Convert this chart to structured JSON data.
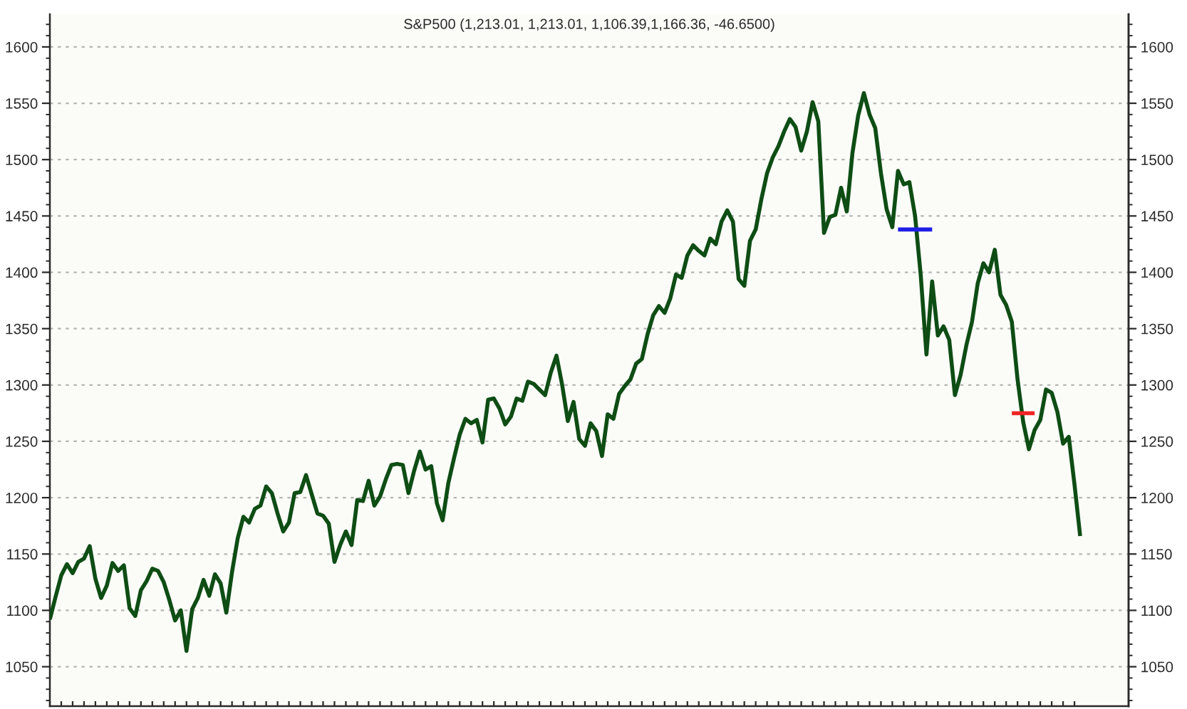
{
  "chart_data": {
    "type": "line",
    "title": "S&P500 (1,213.01, 1,213.01, 1,106.39,1,166.36, -46.6500)",
    "categories": [
      null,
      null,
      null,
      null,
      null,
      null,
      null,
      null,
      null,
      null,
      null,
      null,
      null,
      null,
      null,
      null,
      null,
      null,
      null,
      null,
      null,
      null,
      null,
      null,
      null,
      null,
      null,
      null,
      null,
      null,
      null,
      null,
      null,
      null,
      null,
      null,
      null,
      null,
      null,
      null,
      null,
      null,
      null,
      null,
      null,
      null,
      null,
      null,
      null,
      null,
      null,
      null,
      null,
      null,
      null,
      null,
      null,
      null,
      null,
      null,
      null,
      null,
      null,
      null,
      null,
      null,
      null,
      null,
      null,
      null,
      null,
      null,
      null,
      null,
      null,
      null,
      null,
      null,
      null,
      null,
      null,
      null,
      null,
      null,
      null,
      null,
      null,
      null,
      null,
      null,
      null,
      null,
      null,
      null,
      null,
      null,
      null,
      null,
      null,
      null,
      null,
      null,
      null,
      null,
      null,
      null,
      null,
      null,
      null,
      null,
      null,
      null,
      null,
      null,
      null,
      null,
      null,
      null,
      null,
      null,
      null,
      null,
      null,
      null,
      null,
      null,
      null,
      null,
      null,
      null,
      null,
      null,
      null,
      null,
      null,
      null,
      null,
      null,
      null,
      null,
      null,
      null,
      null,
      null,
      null,
      null,
      null,
      null,
      null,
      null,
      null,
      null,
      null,
      null,
      null,
      null,
      null,
      null,
      null,
      null,
      null,
      null,
      null,
      null,
      null,
      null,
      null,
      null,
      null,
      null,
      null,
      null,
      null,
      null,
      null,
      null,
      null,
      null,
      null,
      null,
      null,
      null
    ],
    "series": [
      {
        "color": "#0e4d14",
        "values": [
          1092,
          1112,
          1131,
          1141,
          1133,
          1143,
          1146,
          1157,
          1128,
          1111,
          1122,
          1142,
          1135,
          1140,
          1102,
          1095,
          1118,
          1126,
          1137,
          1135,
          1125,
          1109,
          1091,
          1100,
          1064,
          1101,
          1111,
          1127,
          1113,
          1132,
          1124,
          1098,
          1134,
          1164,
          1183,
          1178,
          1190,
          1193,
          1210,
          1204,
          1186,
          1170,
          1178,
          1204,
          1205,
          1220,
          1203,
          1186,
          1184,
          1177,
          1143,
          1158,
          1170,
          1158,
          1198,
          1197,
          1215,
          1193,
          1201,
          1216,
          1229,
          1230,
          1229,
          1204,
          1224,
          1241,
          1225,
          1228,
          1195,
          1180,
          1213,
          1235,
          1256,
          1270,
          1266,
          1269,
          1249,
          1287,
          1288,
          1279,
          1265,
          1272,
          1288,
          1286,
          1303,
          1301,
          1296,
          1291,
          1311,
          1326,
          1300,
          1268,
          1285,
          1252,
          1246,
          1266,
          1259,
          1237,
          1274,
          1270,
          1292,
          1299,
          1305,
          1319,
          1323,
          1345,
          1362,
          1370,
          1364,
          1377,
          1398,
          1395,
          1415,
          1424,
          1419,
          1415,
          1430,
          1425,
          1445,
          1455,
          1445,
          1394,
          1388,
          1428,
          1438,
          1465,
          1488,
          1502,
          1512,
          1525,
          1536,
          1529,
          1508,
          1525,
          1551,
          1534,
          1435,
          1449,
          1451,
          1475,
          1454,
          1506,
          1539,
          1559,
          1540,
          1528,
          1488,
          1456,
          1440,
          1490,
          1478,
          1480,
          1450,
          1397,
          1327,
          1392,
          1344,
          1352,
          1340,
          1291,
          1309,
          1335,
          1356,
          1390,
          1408,
          1400,
          1420,
          1380,
          1371,
          1356,
          1305,
          1267,
          1243,
          1260,
          1269,
          1296,
          1293,
          1276,
          1248,
          1254,
          1212,
          1166
        ]
      },
      {
        "color": "#1f1fe6",
        "values": [
          null,
          null,
          null,
          null,
          null,
          null,
          null,
          null,
          null,
          null,
          null,
          null,
          null,
          null,
          null,
          null,
          null,
          null,
          null,
          null,
          null,
          null,
          null,
          null,
          null,
          null,
          null,
          null,
          null,
          null,
          null,
          null,
          null,
          null,
          null,
          null,
          null,
          null,
          null,
          null,
          null,
          null,
          null,
          null,
          null,
          null,
          null,
          null,
          null,
          null,
          null,
          null,
          null,
          null,
          null,
          null,
          null,
          null,
          null,
          null,
          null,
          null,
          null,
          null,
          null,
          null,
          null,
          null,
          null,
          null,
          null,
          null,
          null,
          null,
          null,
          null,
          null,
          null,
          null,
          null,
          null,
          null,
          null,
          null,
          null,
          null,
          null,
          null,
          null,
          null,
          null,
          null,
          null,
          null,
          null,
          null,
          null,
          null,
          null,
          null,
          null,
          null,
          null,
          null,
          null,
          null,
          null,
          null,
          null,
          null,
          null,
          null,
          null,
          null,
          null,
          null,
          null,
          null,
          null,
          null,
          null,
          null,
          null,
          null,
          null,
          null,
          null,
          null,
          null,
          null,
          null,
          null,
          null,
          null,
          null,
          null,
          null,
          null,
          null,
          null,
          null,
          null,
          null,
          null,
          null,
          null,
          null,
          null,
          null,
          1438,
          1438,
          1438,
          1438,
          1438,
          1438,
          1438,
          null,
          null,
          null,
          null,
          null,
          null,
          null,
          null,
          null,
          null,
          null,
          null,
          null,
          null,
          null,
          null,
          null,
          null,
          null,
          null,
          null,
          null,
          null,
          null,
          null,
          null
        ]
      },
      {
        "color": "#ee2424",
        "values": [
          null,
          null,
          null,
          null,
          null,
          null,
          null,
          null,
          null,
          null,
          null,
          null,
          null,
          null,
          null,
          null,
          null,
          null,
          null,
          null,
          null,
          null,
          null,
          null,
          null,
          null,
          null,
          null,
          null,
          null,
          null,
          null,
          null,
          null,
          null,
          null,
          null,
          null,
          null,
          null,
          null,
          null,
          null,
          null,
          null,
          null,
          null,
          null,
          null,
          null,
          null,
          null,
          null,
          null,
          null,
          null,
          null,
          null,
          null,
          null,
          null,
          null,
          null,
          null,
          null,
          null,
          null,
          null,
          null,
          null,
          null,
          null,
          null,
          null,
          null,
          null,
          null,
          null,
          null,
          null,
          null,
          null,
          null,
          null,
          null,
          null,
          null,
          null,
          null,
          null,
          null,
          null,
          null,
          null,
          null,
          null,
          null,
          null,
          null,
          null,
          null,
          null,
          null,
          null,
          null,
          null,
          null,
          null,
          null,
          null,
          null,
          null,
          null,
          null,
          null,
          null,
          null,
          null,
          null,
          null,
          null,
          null,
          null,
          null,
          null,
          null,
          null,
          null,
          null,
          null,
          null,
          null,
          null,
          null,
          null,
          null,
          null,
          null,
          null,
          null,
          null,
          null,
          null,
          null,
          null,
          null,
          null,
          null,
          null,
          null,
          null,
          null,
          null,
          null,
          null,
          null,
          null,
          null,
          null,
          null,
          null,
          null,
          null,
          null,
          null,
          null,
          null,
          null,
          null,
          1275,
          1275,
          1275,
          1275,
          1275,
          null,
          null,
          null,
          null,
          null,
          null,
          null,
          null
        ]
      }
    ],
    "ylim": [
      1015,
      1629
    ],
    "yticks": [
      1050,
      1100,
      1150,
      1200,
      1250,
      1300,
      1350,
      1400,
      1450,
      1500,
      1550,
      1600
    ],
    "y2lim": [
      1015,
      1629
    ],
    "y2ticks": [
      1050,
      1100,
      1150,
      1200,
      1250,
      1300,
      1350,
      1400,
      1450,
      1500,
      1550,
      1600
    ],
    "grid": "y",
    "tick_labels": "y",
    "line_style": "solid"
  }
}
